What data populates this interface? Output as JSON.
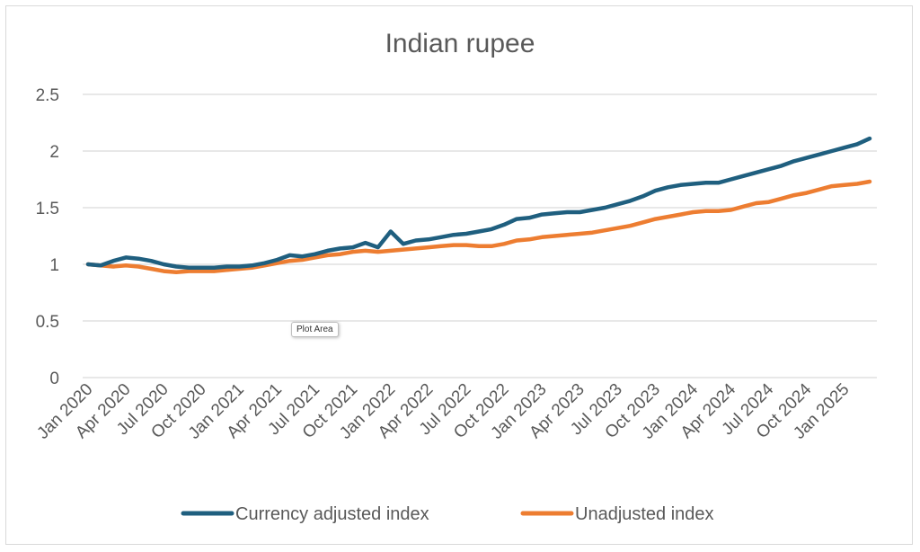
{
  "chart_data": {
    "type": "line",
    "title": "Indian rupee",
    "ylim": [
      0,
      2.5
    ],
    "yticks": [
      "0",
      "0.5",
      "1",
      "1.5",
      "2",
      "2.5"
    ],
    "grid": true,
    "legend_position": "bottom",
    "xtick_labels": [
      "Jan 2020",
      "Apr 2020",
      "Jul 2020",
      "Oct 2020",
      "Jan 2021",
      "Apr 2021",
      "Jul 2021",
      "Oct 2021",
      "Jan 2022",
      "Apr 2022",
      "Jul 2022",
      "Oct 2022",
      "Jan 2023",
      "Apr 2023",
      "Jul 2023",
      "Oct 2023",
      "Jan 2024",
      "Apr 2024",
      "Jul 2024",
      "Oct 2024",
      "Jan 2025"
    ],
    "x": [
      "Jan 2020",
      "Feb 2020",
      "Mar 2020",
      "Apr 2020",
      "May 2020",
      "Jun 2020",
      "Jul 2020",
      "Aug 2020",
      "Sep 2020",
      "Oct 2020",
      "Nov 2020",
      "Dec 2020",
      "Jan 2021",
      "Feb 2021",
      "Mar 2021",
      "Apr 2021",
      "May 2021",
      "Jun 2021",
      "Jul 2021",
      "Aug 2021",
      "Sep 2021",
      "Oct 2021",
      "Nov 2021",
      "Dec 2021",
      "Jan 2022",
      "Feb 2022",
      "Mar 2022",
      "Apr 2022",
      "May 2022",
      "Jun 2022",
      "Jul 2022",
      "Aug 2022",
      "Sep 2022",
      "Oct 2022",
      "Nov 2022",
      "Dec 2022",
      "Jan 2023",
      "Feb 2023",
      "Mar 2023",
      "Apr 2023",
      "May 2023",
      "Jun 2023",
      "Jul 2023",
      "Aug 2023",
      "Sep 2023",
      "Oct 2023",
      "Nov 2023",
      "Dec 2023",
      "Jan 2024",
      "Feb 2024",
      "Mar 2024",
      "Apr 2024",
      "May 2024",
      "Jun 2024",
      "Jul 2024",
      "Aug 2024",
      "Sep 2024",
      "Oct 2024",
      "Nov 2024",
      "Dec 2024",
      "Jan 2025",
      "Feb 2025",
      "Mar 2025"
    ],
    "series": [
      {
        "name": "Currency adjusted index",
        "color": "#1f5f7f",
        "values": [
          1.0,
          0.99,
          1.03,
          1.06,
          1.05,
          1.03,
          1.0,
          0.98,
          0.97,
          0.97,
          0.97,
          0.98,
          0.98,
          0.99,
          1.01,
          1.04,
          1.08,
          1.07,
          1.09,
          1.12,
          1.14,
          1.15,
          1.19,
          1.15,
          1.29,
          1.18,
          1.21,
          1.22,
          1.24,
          1.26,
          1.27,
          1.29,
          1.31,
          1.35,
          1.4,
          1.41,
          1.44,
          1.45,
          1.46,
          1.46,
          1.48,
          1.5,
          1.53,
          1.56,
          1.6,
          1.65,
          1.68,
          1.7,
          1.71,
          1.72,
          1.72,
          1.75,
          1.78,
          1.81,
          1.84,
          1.87,
          1.91,
          1.94,
          1.97,
          2.0,
          2.03,
          2.06,
          2.11
        ]
      },
      {
        "name": "Unadjusted index",
        "color": "#ed7d31",
        "values": [
          1.0,
          0.99,
          0.98,
          0.99,
          0.98,
          0.96,
          0.94,
          0.93,
          0.94,
          0.94,
          0.94,
          0.95,
          0.96,
          0.97,
          0.99,
          1.01,
          1.03,
          1.04,
          1.06,
          1.08,
          1.09,
          1.11,
          1.12,
          1.11,
          1.12,
          1.13,
          1.14,
          1.15,
          1.16,
          1.17,
          1.17,
          1.16,
          1.16,
          1.18,
          1.21,
          1.22,
          1.24,
          1.25,
          1.26,
          1.27,
          1.28,
          1.3,
          1.32,
          1.34,
          1.37,
          1.4,
          1.42,
          1.44,
          1.46,
          1.47,
          1.47,
          1.48,
          1.51,
          1.54,
          1.55,
          1.58,
          1.61,
          1.63,
          1.66,
          1.69,
          1.7,
          1.71,
          1.73
        ]
      }
    ]
  },
  "tooltip": "Plot Area"
}
